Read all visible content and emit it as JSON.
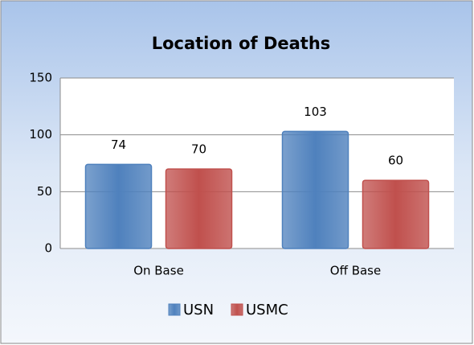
{
  "chart_data": {
    "type": "bar",
    "title": "Location of Deaths",
    "categories": [
      "On Base",
      "Off Base"
    ],
    "series": [
      {
        "name": "USN",
        "color": "#4f81bd",
        "values": [
          74,
          103
        ]
      },
      {
        "name": "USMC",
        "color": "#c0504d",
        "values": [
          70,
          60
        ]
      }
    ],
    "ylim": [
      0,
      150
    ],
    "yticks": [
      0,
      50,
      100,
      150
    ],
    "grid": true,
    "legend": "bottom"
  }
}
